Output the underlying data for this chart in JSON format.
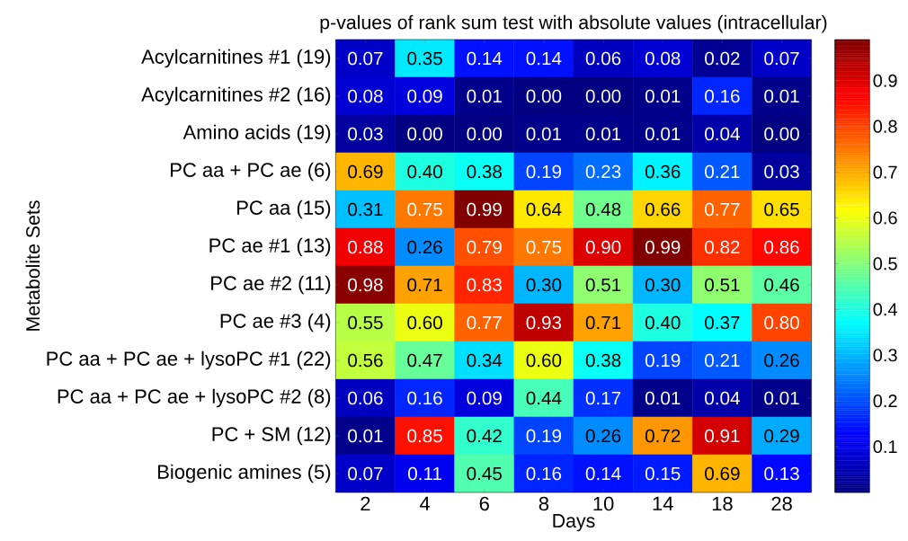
{
  "chart_data": {
    "type": "heatmap",
    "title": "p-values of rank sum test with absolute values (intracellular)",
    "xlabel": "Days",
    "ylabel": "Metabolite Sets",
    "categories": [
      "2",
      "4",
      "6",
      "8",
      "10",
      "14",
      "18",
      "28"
    ],
    "y_categories": [
      "Acylcarnitines #1 (19)",
      "Acylcarnitines #2 (16)",
      "Amino acids (19)",
      "PC aa + PC ae (6)",
      "PC aa (15)",
      "PC ae #1 (13)",
      "PC ae #2 (11)",
      "PC ae #3 (4)",
      "PC aa + PC ae + lysoPC #1 (22)",
      "PC aa + PC ae + lysoPC #2 (8)",
      "PC + SM (12)",
      "Biogenic amines (5)"
    ],
    "cells": [
      [
        0.07,
        0.35,
        0.14,
        0.14,
        0.06,
        0.08,
        0.02,
        0.07
      ],
      [
        0.08,
        0.09,
        0.01,
        0.0,
        0.0,
        0.01,
        0.16,
        0.01
      ],
      [
        0.03,
        0.0,
        0.0,
        0.01,
        0.01,
        0.01,
        0.04,
        0.0
      ],
      [
        0.69,
        0.4,
        0.38,
        0.19,
        0.23,
        0.36,
        0.21,
        0.03
      ],
      [
        0.31,
        0.75,
        0.99,
        0.64,
        0.48,
        0.66,
        0.77,
        0.65
      ],
      [
        0.88,
        0.26,
        0.79,
        0.75,
        0.9,
        0.99,
        0.82,
        0.86
      ],
      [
        0.98,
        0.71,
        0.83,
        0.3,
        0.51,
        0.3,
        0.51,
        0.46
      ],
      [
        0.55,
        0.6,
        0.77,
        0.93,
        0.71,
        0.4,
        0.37,
        0.8
      ],
      [
        0.56,
        0.47,
        0.34,
        0.6,
        0.38,
        0.19,
        0.21,
        0.26
      ],
      [
        0.06,
        0.16,
        0.09,
        0.44,
        0.17,
        0.01,
        0.04,
        0.01
      ],
      [
        0.01,
        0.85,
        0.42,
        0.19,
        0.26,
        0.72,
        0.91,
        0.29
      ],
      [
        0.07,
        0.11,
        0.45,
        0.16,
        0.14,
        0.15,
        0.69,
        0.13
      ]
    ],
    "clim": [
      0,
      0.99
    ],
    "cticks": [
      0.1,
      0.2,
      0.3,
      0.4,
      0.5,
      0.6,
      0.7,
      0.8,
      0.9
    ],
    "data_labels": true,
    "cell_labels": [
      [
        "0.07",
        "0.35",
        "0.14",
        "0.14",
        "0.06",
        "0.08",
        "0.02",
        "0.07"
      ],
      [
        "0.08",
        "0.09",
        "0.01",
        "0.00",
        "0.00",
        "0.01",
        "0.16",
        "0.01"
      ],
      [
        "0.03",
        "0.00",
        "0.00",
        "0.01",
        "0.01",
        "0.01",
        "0.04",
        "0.00"
      ],
      [
        "0.69",
        "0.40",
        "0.38",
        "0.19",
        "0.23",
        "0.36",
        "0.21",
        "0.03"
      ],
      [
        "0.31",
        "0.75",
        "0.99",
        "0.64",
        "0.48",
        "0.66",
        "0.77",
        "0.65"
      ],
      [
        "0.88",
        "0.26",
        "0.79",
        "0.75",
        "0.90",
        "0.99",
        "0.82",
        "0.86"
      ],
      [
        "0.98",
        "0.71",
        "0.83",
        "0.30",
        "0.51",
        "0.30",
        "0.51",
        "0.46"
      ],
      [
        "0.55",
        "0.60",
        "0.77",
        "0.93",
        "0.71",
        "0.40",
        "0.37",
        "0.80"
      ],
      [
        "0.56",
        "0.47",
        "0.34",
        "0.60",
        "0.38",
        "0.19",
        "0.21",
        "0.26"
      ],
      [
        "0.06",
        "0.16",
        "0.09",
        "0.44",
        "0.17",
        "0.01",
        "0.04",
        "0.01"
      ],
      [
        "0.01",
        "0.85",
        "0.42",
        "0.19",
        "0.26",
        "0.72",
        "0.91",
        "0.29"
      ],
      [
        "0.07",
        "0.11",
        "0.45",
        "0.16",
        "0.14",
        "0.15",
        "0.69",
        "0.13"
      ]
    ]
  }
}
